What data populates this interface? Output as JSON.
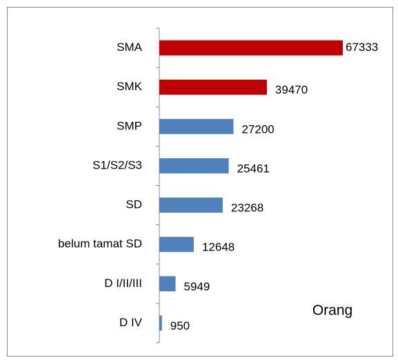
{
  "chart_data": {
    "type": "bar",
    "orientation": "horizontal",
    "categories": [
      "SMA",
      "SMK",
      "SMP",
      "S1/S2/S3",
      "SD",
      "belum tamat SD",
      "D I/II/III",
      "D IV"
    ],
    "values": [
      67333,
      39470,
      27200,
      25461,
      23268,
      12648,
      5949,
      950
    ],
    "colors": [
      "#c00000",
      "#c00000",
      "#4f81bd",
      "#4f81bd",
      "#4f81bd",
      "#4f81bd",
      "#4f81bd",
      "#4f81bd"
    ],
    "annotation": "Orang"
  }
}
